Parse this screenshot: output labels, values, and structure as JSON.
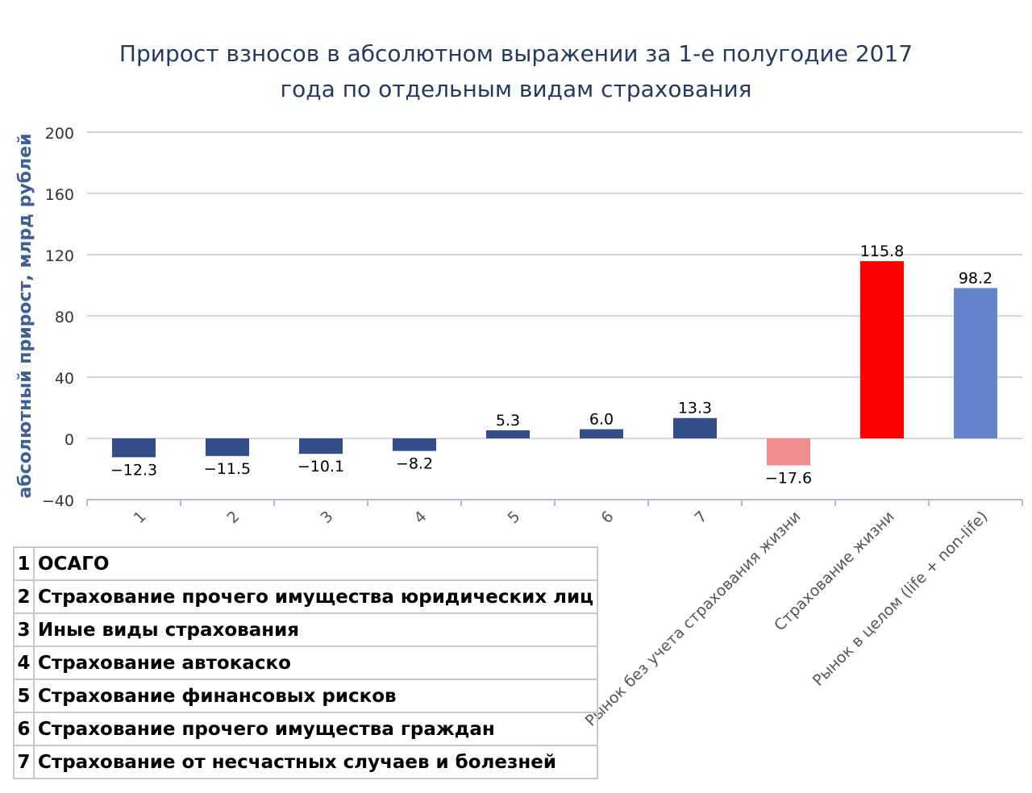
{
  "chart_data": {
    "type": "bar",
    "title_line1": "Прирост взносов в абсолютном выражении за 1-е полугодие 2017",
    "title_line2": "года по отдельным видам страхования",
    "ylabel": "абсолютный прирост, млрд рублей",
    "xlabel": "",
    "ylim": [
      -40,
      200
    ],
    "yticks": [
      "−40",
      "0",
      "40",
      "80",
      "120",
      "160",
      "200"
    ],
    "ytick_values": [
      -40,
      0,
      40,
      80,
      120,
      160,
      200
    ],
    "categories": [
      "1",
      "2",
      "3",
      "4",
      "5",
      "6",
      "7",
      "Рынок без учета страхования жизни",
      "Страхование жизни",
      "Рынок в целом (life + non-life)"
    ],
    "values": [
      -12.3,
      -11.5,
      -10.1,
      -8.2,
      5.3,
      6.0,
      13.3,
      -17.6,
      115.8,
      98.2
    ],
    "value_labels": [
      "−12.3",
      "−11.5",
      "−10.1",
      "−8.2",
      "5.3",
      "6.0",
      "13.3",
      "−17.6",
      "115.8",
      "98.2"
    ],
    "colors": [
      "#344e8a",
      "#344e8a",
      "#344e8a",
      "#344e8a",
      "#344e8a",
      "#344e8a",
      "#344e8a",
      "#f08c8c",
      "#ff0000",
      "#6484cc"
    ],
    "grid": true
  },
  "legend": [
    {
      "num": "1",
      "label": "ОСАГО"
    },
    {
      "num": "2",
      "label": "Страхование прочего имущества юридических лиц"
    },
    {
      "num": "3",
      "label": "Иные виды страхования"
    },
    {
      "num": "4",
      "label": "Страхование автокаско"
    },
    {
      "num": "5",
      "label": "Страхование финансовых рисков"
    },
    {
      "num": "6",
      "label": "Страхование прочего имущества граждан"
    },
    {
      "num": "7",
      "label": "Страхование от несчастных случаев и болезней"
    }
  ]
}
